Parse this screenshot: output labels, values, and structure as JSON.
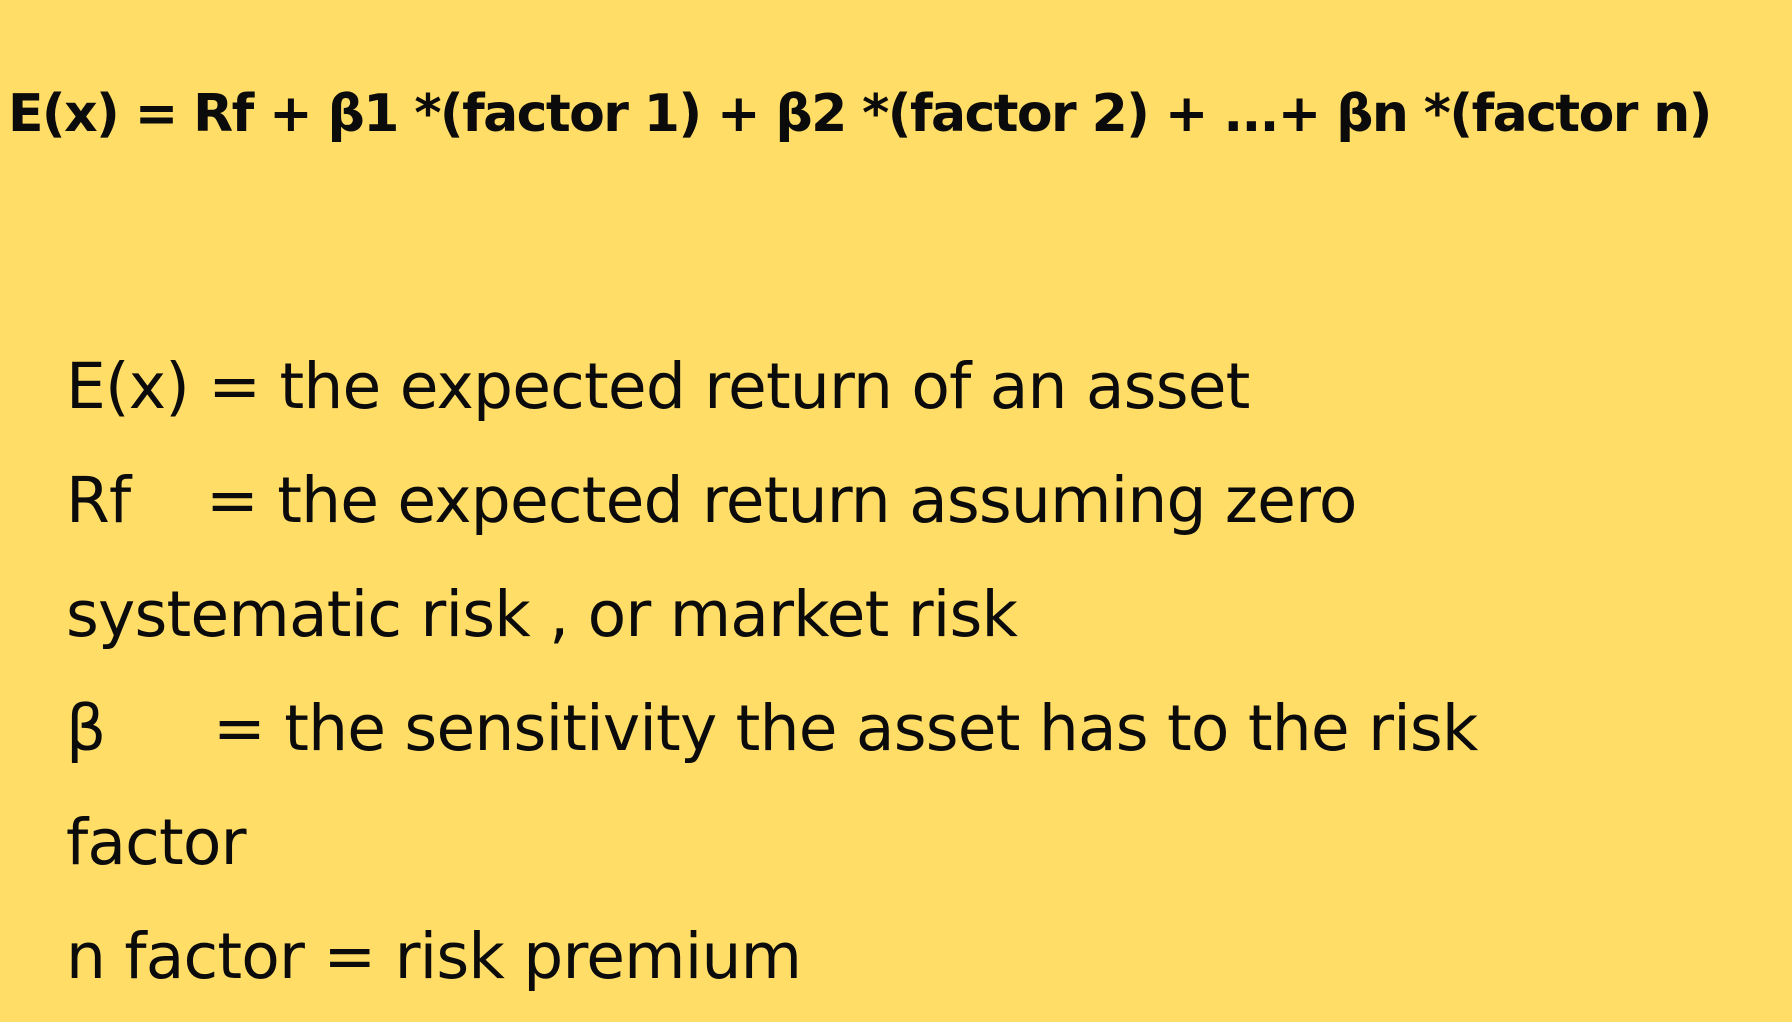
{
  "formula": "E(x) = Rf + β1 *(factor 1) + β2 *(factor 2) + ...+ βn *(factor n)",
  "definitions": [
    {
      "term": "E(x)",
      "text": " = the expected return of an asset"
    },
    {
      "term": "Rf",
      "text": "= the expected return assuming zero"
    },
    {
      "continuation": "systematic risk , or market risk"
    },
    {
      "term": "β",
      "text": "= the sensitivity the asset has to the risk"
    },
    {
      "continuation": "factor"
    },
    {
      "term": "n factor",
      "text": " = risk premium"
    }
  ],
  "colors": {
    "background": "#FFDD67",
    "text": "#0b0b0b"
  }
}
